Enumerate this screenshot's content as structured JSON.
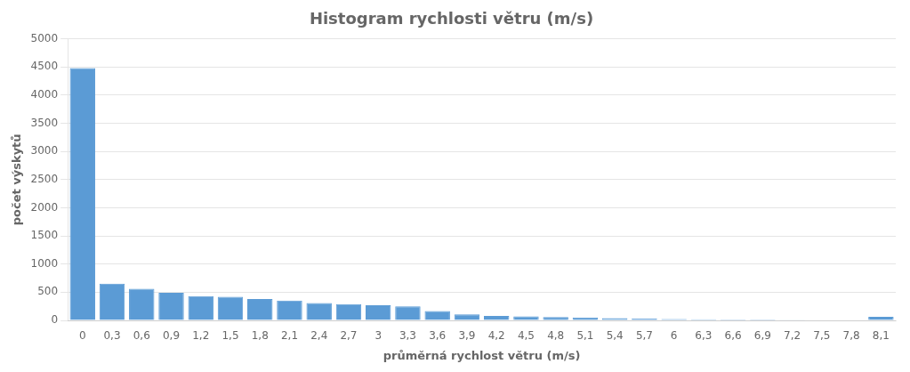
{
  "chart_data": {
    "type": "bar",
    "title": "Histogram rychlosti větru (m/s)",
    "xlabel": "průměrná rychlost větru (m/s)",
    "ylabel": "počet výskytů",
    "categories": [
      "0",
      "0,3",
      "0,6",
      "0,9",
      "1,2",
      "1,5",
      "1,8",
      "2,1",
      "2,4",
      "2,7",
      "3",
      "3,3",
      "3,6",
      "3,9",
      "4,2",
      "4,5",
      "4,8",
      "5,1",
      "5,4",
      "5,7",
      "6",
      "6,3",
      "6,6",
      "6,9",
      "7,2",
      "7,5",
      "7,8",
      "8,1"
    ],
    "values": [
      4480,
      650,
      560,
      490,
      430,
      420,
      380,
      350,
      310,
      290,
      270,
      250,
      165,
      105,
      80,
      70,
      60,
      50,
      38,
      30,
      25,
      20,
      17,
      14,
      11,
      8,
      7,
      65
    ],
    "color": "#5b9bd5",
    "ylim": [
      0,
      5000
    ],
    "yticks": [
      0,
      500,
      1000,
      1500,
      2000,
      2500,
      3000,
      3500,
      4000,
      4500,
      5000
    ],
    "grid": true
  }
}
